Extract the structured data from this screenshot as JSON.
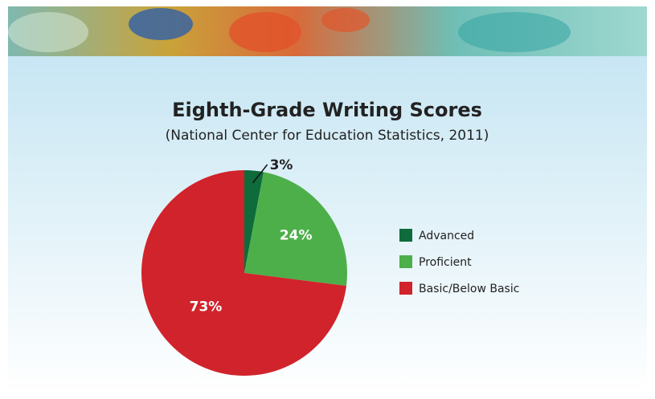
{
  "chart_data": {
    "type": "pie",
    "title": "Eighth-Grade Writing Scores",
    "subtitle": "(National Center for Education Statistics, 2011)",
    "categories": [
      "Advanced",
      "Proficient",
      "Basic/Below Basic"
    ],
    "values": [
      3,
      24,
      73
    ],
    "value_labels": [
      "3%",
      "24%",
      "73%"
    ],
    "colors": [
      "#0e6b3b",
      "#4daf4a",
      "#d1232b"
    ]
  }
}
